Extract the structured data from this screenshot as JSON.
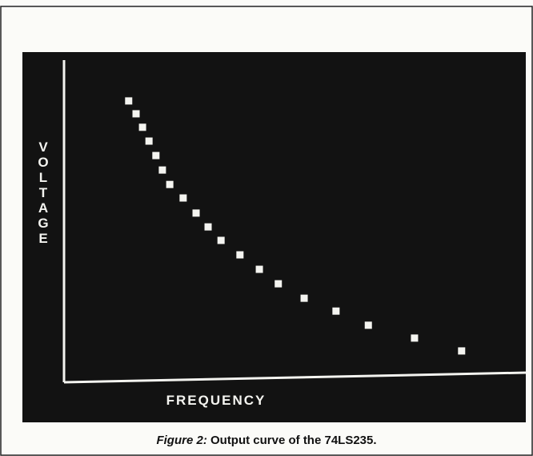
{
  "chart_data": {
    "type": "scatter",
    "x_label": "FREQUENCY",
    "y_label": "VOLTAGE",
    "caption_label": "Figure 2:",
    "caption_text": "Output curve of the 74LS235.",
    "x": [
      14.0,
      15.6,
      17.0,
      18.4,
      19.9,
      21.3,
      22.9,
      25.8,
      28.6,
      31.2,
      34.0,
      38.1,
      42.3,
      46.4,
      52.0,
      58.9,
      65.9,
      75.9,
      86.1
    ],
    "values": [
      87.3,
      83.3,
      79.1,
      74.8,
      70.3,
      65.8,
      61.3,
      57.1,
      52.4,
      48.1,
      43.9,
      39.4,
      34.9,
      30.4,
      25.9,
      21.9,
      17.5,
      13.5,
      9.5
    ],
    "xlim": [
      0,
      100
    ],
    "ylim": [
      0,
      100
    ],
    "color": "#f4f4f0"
  }
}
